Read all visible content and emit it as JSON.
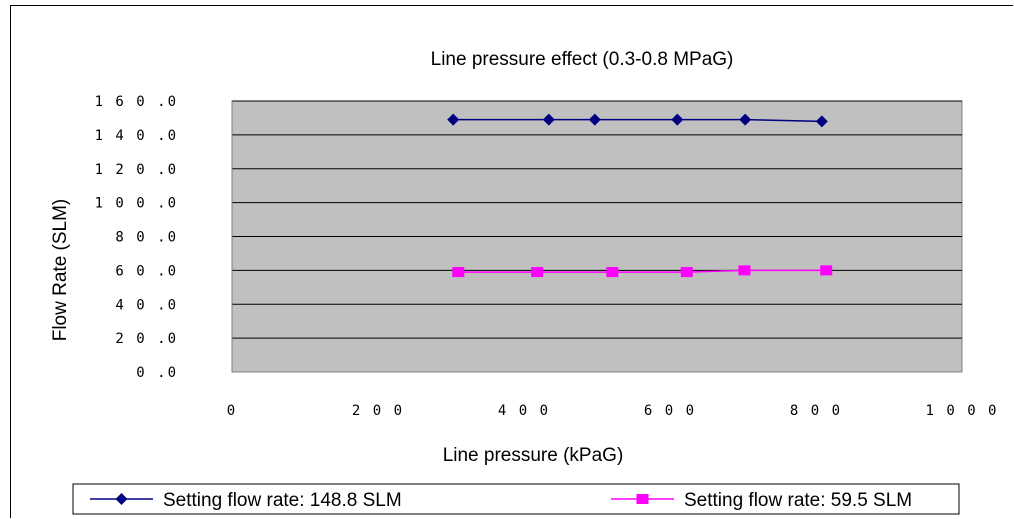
{
  "chart_data": {
    "type": "line",
    "title": "Line pressure effect (0.3-0.8 MPaG)",
    "xlabel": "Line pressure (kPaG)",
    "ylabel": "Flow Rate (SLM)",
    "xlim": [
      0,
      1000
    ],
    "ylim": [
      0,
      160
    ],
    "x_ticks": [
      "0",
      "200",
      "400",
      "600",
      "800",
      "1000"
    ],
    "y_ticks": [
      "0.0",
      "20.0",
      "40.0",
      "60.0",
      "80.0",
      "100.0",
      "120.0",
      "140.0",
      "160.0"
    ],
    "x_tick_display": [
      "0",
      "2 0 0",
      "4 0 0",
      "6 0 0",
      "8 0 0",
      "1 0 0 0"
    ],
    "y_tick_display": [
      "0 .0",
      "2 0 .0",
      "4 0 .0",
      "6 0 .0",
      "8 0 .0",
      "1 0 0 .0",
      "1 2 0 .0",
      "1 4 0 .0",
      "1 6 0 .0"
    ],
    "grid": true,
    "plot_background": "#c0c0c0",
    "legend_position": "bottom",
    "series": [
      {
        "name": "Setting flow rate: 148.8 SLM",
        "color": "#000080",
        "marker": "diamond",
        "x": [
          303,
          434,
          497,
          610,
          703,
          808
        ],
        "y": [
          149,
          149,
          149,
          149,
          149,
          148
        ]
      },
      {
        "name": "Setting flow rate: 59.5 SLM",
        "color": "#ff00ff",
        "marker": "square",
        "x": [
          310,
          418,
          521,
          623,
          702,
          814
        ],
        "y": [
          59,
          59,
          59,
          59,
          60,
          60
        ]
      }
    ]
  }
}
